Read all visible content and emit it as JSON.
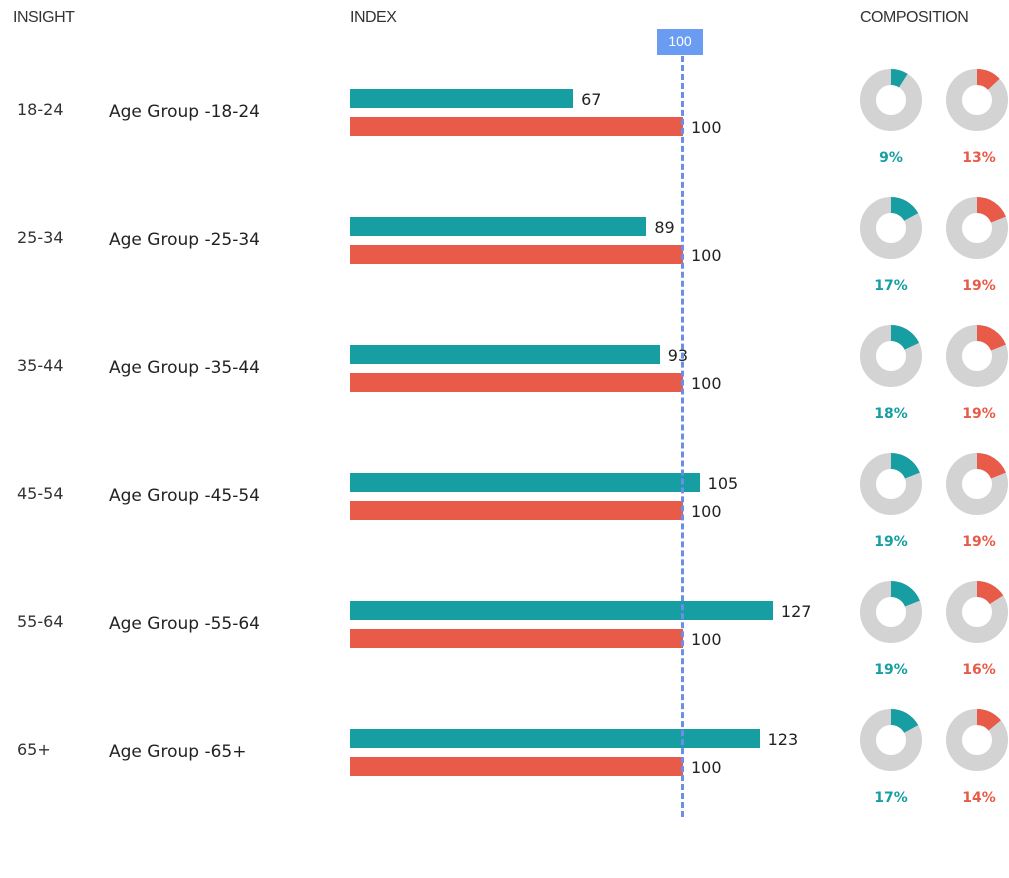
{
  "headers": {
    "insight": "INSIGHT",
    "index": "INDEX",
    "composition": "COMPOSITION"
  },
  "colors": {
    "target": "#179ea3",
    "base": "#e85b48",
    "ref": "#6a9cf2",
    "donut_bg": "#d3d3d3"
  },
  "chart_data": {
    "type": "bar",
    "title": "",
    "reference_line": {
      "value": 100,
      "label": "100"
    },
    "categories": [
      "18-24",
      "25-34",
      "35-44",
      "45-54",
      "55-64",
      "65+"
    ],
    "labels": [
      "Age Group -18-24",
      "Age Group -25-34",
      "Age Group -35-44",
      "Age Group -45-54",
      "Age Group -55-64",
      "Age Group -65+"
    ],
    "series": [
      {
        "name": "target",
        "values": [
          67,
          89,
          93,
          105,
          127,
          123
        ],
        "composition": [
          "9%",
          "17%",
          "18%",
          "19%",
          "19%",
          "17%"
        ]
      },
      {
        "name": "base",
        "values": [
          100,
          100,
          100,
          100,
          100,
          100
        ],
        "composition": [
          "13%",
          "19%",
          "19%",
          "19%",
          "16%",
          "14%"
        ]
      }
    ]
  }
}
